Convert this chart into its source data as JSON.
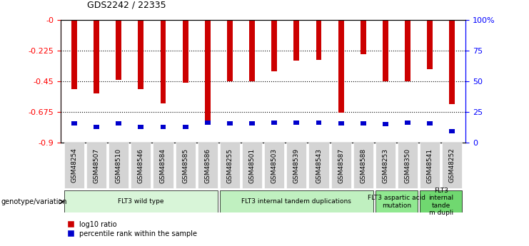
{
  "title": "GDS2242 / 22335",
  "samples": [
    "GSM48254",
    "GSM48507",
    "GSM48510",
    "GSM48546",
    "GSM48584",
    "GSM48585",
    "GSM48586",
    "GSM48255",
    "GSM48501",
    "GSM48503",
    "GSM48539",
    "GSM48543",
    "GSM48587",
    "GSM48588",
    "GSM48253",
    "GSM48350",
    "GSM48541",
    "GSM48252"
  ],
  "log10_ratio": [
    -0.51,
    -0.54,
    -0.44,
    -0.51,
    -0.61,
    -0.46,
    -0.76,
    -0.45,
    -0.45,
    -0.38,
    -0.3,
    -0.295,
    -0.68,
    -0.25,
    -0.45,
    -0.45,
    -0.36,
    -0.62
  ],
  "blue_position": [
    -0.775,
    -0.8,
    -0.775,
    -0.8,
    -0.8,
    -0.8,
    -0.77,
    -0.775,
    -0.775,
    -0.77,
    -0.77,
    -0.77,
    -0.775,
    -0.775,
    -0.78,
    -0.77,
    -0.775,
    -0.83
  ],
  "blue_height": [
    0.03,
    0.03,
    0.03,
    0.03,
    0.03,
    0.03,
    0.03,
    0.03,
    0.03,
    0.03,
    0.03,
    0.03,
    0.03,
    0.03,
    0.03,
    0.03,
    0.03,
    0.03
  ],
  "groups": [
    {
      "label": "FLT3 wild type",
      "start": 0,
      "end": 7,
      "color": "#d8f5d8"
    },
    {
      "label": "FLT3 internal tandem duplications",
      "start": 7,
      "end": 14,
      "color": "#c0f0c0"
    },
    {
      "label": "FLT3 aspartic acid\nmutation",
      "start": 14,
      "end": 16,
      "color": "#90e890"
    },
    {
      "label": "FLT3\ninternal\ntande\nm dupli",
      "start": 16,
      "end": 18,
      "color": "#70d870"
    }
  ],
  "ylim_left": [
    -0.9,
    0.0
  ],
  "yticks_left": [
    -0.9,
    -0.675,
    -0.45,
    -0.225,
    0.0
  ],
  "yticks_left_labels": [
    "-0.9",
    "-0.675",
    "-0.45",
    "-0.225",
    "-0"
  ],
  "yticks_right": [
    0,
    25,
    50,
    75,
    100
  ],
  "yticks_right_labels": [
    "0",
    "25",
    "50",
    "75",
    "100%"
  ],
  "bar_color": "#cc0000",
  "blue_color": "#0000cc",
  "bar_width": 0.25,
  "background_color": "#ffffff",
  "plot_bg_color": "#ffffff",
  "genotype_label": "genotype/variation",
  "legend_red": "log10 ratio",
  "legend_blue": "percentile rank within the sample"
}
